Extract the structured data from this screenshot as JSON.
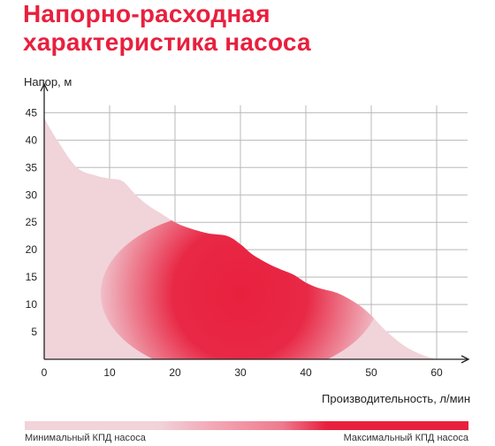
{
  "title_line1": "Напорно-расходная",
  "title_line2": "характеристика насоса",
  "colors": {
    "title": "#e8203e",
    "curve_fill": "#f1d3da",
    "efficiency_max": "#e8203e",
    "grid": "#b9b9b9",
    "axis": "#222222"
  },
  "legend": {
    "min_label": "Минимальный КПД насоса",
    "max_label": "Максимальный КПД насоса"
  },
  "chart_data": {
    "type": "area",
    "ylabel": "Напор, м",
    "xlabel": "Производительность, л/мин",
    "xlim": [
      0,
      65
    ],
    "ylim": [
      0,
      47
    ],
    "x_ticks": [
      0,
      10,
      20,
      30,
      40,
      50,
      60
    ],
    "y_ticks": [
      5,
      10,
      15,
      20,
      25,
      30,
      35,
      40,
      45
    ],
    "grid": true,
    "series": [
      {
        "x": [
          0,
          2,
          5,
          8,
          10,
          12,
          14,
          16,
          18,
          20,
          22,
          25,
          28,
          30,
          32,
          35,
          38,
          40,
          42,
          45,
          48,
          50,
          52,
          55,
          58,
          60
        ],
        "values": [
          44,
          40,
          35,
          33.5,
          33,
          32.5,
          30,
          28,
          26.5,
          25,
          24,
          23,
          22.5,
          21,
          19,
          17,
          15.5,
          14,
          13,
          12,
          10,
          8,
          5.5,
          2.5,
          0.7,
          0
        ]
      }
    ],
    "efficiency_zone": {
      "x_range": [
        15,
        55
      ],
      "best_center_x": 30,
      "best_center_y": 12
    }
  }
}
